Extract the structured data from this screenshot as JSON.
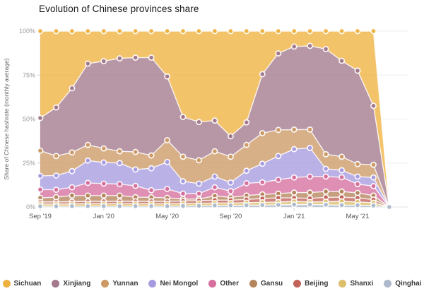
{
  "page": {
    "background": "#ffffff"
  },
  "chart_data": {
    "type": "area",
    "stacked": true,
    "title": "Evolution of Chinese provinces share",
    "ylabel": "Share of Chinese hashrate (monthly average)",
    "xlabel": "",
    "ylim": [
      0,
      100
    ],
    "grid": true,
    "legend_position": "bottom",
    "x": [
      "Sep '19",
      "Oct '19",
      "Nov '19",
      "Dec '19",
      "Jan '20",
      "Feb '20",
      "Mar '20",
      "Apr '20",
      "May '20",
      "Jun '20",
      "Jul '20",
      "Aug '20",
      "Sep '20",
      "Oct '20",
      "Nov '20",
      "Dec '20",
      "Jan '21",
      "Feb '21",
      "Mar '21",
      "Apr '21",
      "May '21",
      "Jun '21",
      "Jul '21"
    ],
    "xtick_labels": [
      "Sep '19",
      "Jan '20",
      "May '20",
      "Sep '20",
      "Jan '21",
      "May '21"
    ],
    "xtick_indices": [
      0,
      4,
      8,
      12,
      16,
      20
    ],
    "ytick_labels": [
      "0%",
      "25%",
      "50%",
      "75%",
      "100%"
    ],
    "ytick_values": [
      0,
      25,
      50,
      75,
      100
    ],
    "stack_order_bottom_to_top": [
      "Qinghai",
      "Shanxi",
      "Beijing",
      "Gansu",
      "Other",
      "Nei Mongol",
      "Yunnan",
      "Xinjiang",
      "Sichuan"
    ],
    "series": [
      {
        "name": "Sichuan",
        "color": "#EFB240",
        "values": [
          49.4,
          43.4,
          32.5,
          18.5,
          17.1,
          15.5,
          15.1,
          15.1,
          25.8,
          48.8,
          51.7,
          50.9,
          59.8,
          51.9,
          24.5,
          12.7,
          8.8,
          8.4,
          10.2,
          16.9,
          22.5,
          42.5,
          0
        ]
      },
      {
        "name": "Xinjiang",
        "color": "#A3798C",
        "values": [
          18.6,
          27.6,
          36.5,
          46.2,
          49.6,
          52.8,
          53.6,
          55.6,
          36.2,
          22.6,
          21.7,
          17.4,
          11.6,
          12.8,
          33.5,
          43.5,
          47.2,
          47.6,
          59.8,
          54.5,
          53.1,
          33.5,
          0
        ]
      },
      {
        "name": "Yunnan",
        "color": "#CD9A66",
        "values": [
          14.3,
          11.1,
          10.6,
          8.9,
          8.0,
          6.7,
          10.0,
          7.3,
          12.4,
          14.0,
          13.3,
          14.4,
          14.7,
          14.7,
          17.4,
          14.8,
          11.1,
          10.4,
          8.3,
          7.7,
          7.1,
          7.2,
          0
        ]
      },
      {
        "name": "Nei Mongol",
        "color": "#A79BE0",
        "values": [
          7.8,
          8.1,
          9.2,
          12.7,
          12.0,
          12.0,
          9.3,
          12.5,
          15.3,
          7.0,
          5.7,
          6.1,
          4.9,
          7.1,
          10.6,
          13.5,
          16.1,
          16.3,
          4.4,
          4.0,
          4.3,
          4.9,
          0
        ]
      },
      {
        "name": "Other",
        "color": "#D66F9E",
        "values": [
          4.7,
          4.2,
          4.7,
          7.2,
          6.8,
          6.5,
          6.4,
          4.0,
          5.1,
          3.1,
          3.1,
          4.9,
          3.5,
          7.0,
          6.8,
          7.9,
          8.6,
          9.1,
          8.5,
          8.1,
          5.0,
          5.4,
          0
        ]
      },
      {
        "name": "Gansu",
        "color": "#B5855C",
        "values": [
          2.4,
          2.7,
          3.5,
          3.3,
          3.3,
          3.3,
          2.4,
          2.3,
          2.0,
          1.1,
          0.9,
          2.4,
          1.6,
          2.2,
          2.4,
          2.4,
          3.0,
          3.3,
          3.3,
          3.2,
          2.8,
          2.3,
          0
        ]
      },
      {
        "name": "Beijing",
        "color": "#C26259",
        "values": [
          1.1,
          1.2,
          1.2,
          1.3,
          1.3,
          1.3,
          1.3,
          1.3,
          1.3,
          1.4,
          1.5,
          1.6,
          1.6,
          1.8,
          2.1,
          2.4,
          2.0,
          2.0,
          2.5,
          2.4,
          2.3,
          1.8,
          0
        ]
      },
      {
        "name": "Shanxi",
        "color": "#DDBE6A",
        "values": [
          1.3,
          1.3,
          1.3,
          1.4,
          1.4,
          1.4,
          1.4,
          1.4,
          1.4,
          1.4,
          1.4,
          1.4,
          1.4,
          1.5,
          1.6,
          1.6,
          1.8,
          1.5,
          1.7,
          2.2,
          1.9,
          1.6,
          0
        ]
      },
      {
        "name": "Qinghai",
        "color": "#AEBACC",
        "values": [
          0.4,
          0.4,
          0.5,
          0.5,
          0.5,
          0.5,
          0.5,
          0.5,
          0.5,
          0.6,
          0.7,
          0.9,
          0.9,
          1.0,
          1.1,
          1.2,
          1.4,
          1.4,
          1.3,
          1.0,
          1.0,
          0.8,
          0
        ]
      }
    ]
  }
}
